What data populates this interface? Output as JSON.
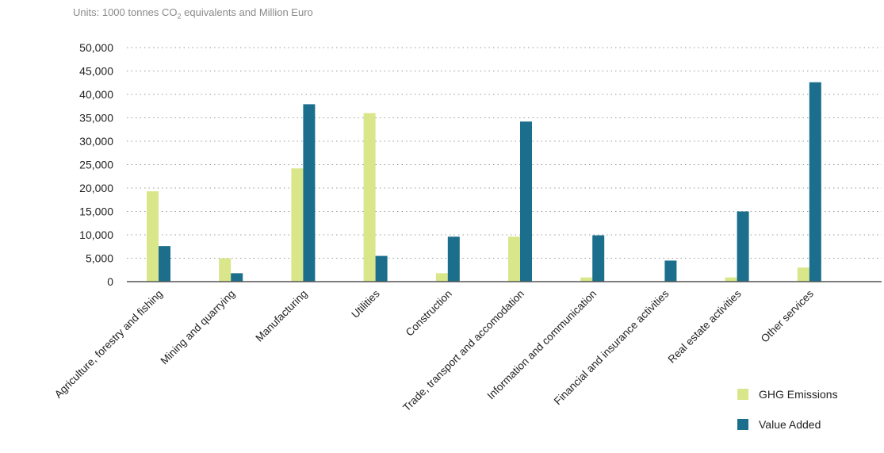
{
  "units_note": {
    "prefix": "Units: 1000 tonnes CO",
    "subscript": "2",
    "suffix": " equivalents and Million Euro"
  },
  "chart_data": {
    "type": "bar",
    "categories": [
      "Agriculture, forestry and fishing",
      "Mining and quarrying",
      "Manufacturing",
      "Utilities",
      "Construction",
      "Trade, transport and accomodation",
      "Information and communication",
      "Financial and insurance activities",
      "Real estate activities",
      "Other services"
    ],
    "series": [
      {
        "name": "GHG Emissions",
        "color": "#d9e68a",
        "values": [
          19300,
          5000,
          24200,
          36000,
          1800,
          9600,
          900,
          0,
          900,
          3000
        ]
      },
      {
        "name": "Value Added",
        "color": "#1b6e8c",
        "values": [
          7600,
          1800,
          37900,
          5500,
          9600,
          34200,
          9900,
          4500,
          15000,
          42600
        ]
      }
    ],
    "yticks": [
      "0",
      "5,000",
      "10,000",
      "15,000",
      "20,000",
      "25,000",
      "30,000",
      "35,000",
      "40,000",
      "45,000",
      "50,000"
    ],
    "ylim": [
      0,
      50000
    ],
    "grid": "horizontal dotted",
    "legend_position": "bottom-right"
  }
}
